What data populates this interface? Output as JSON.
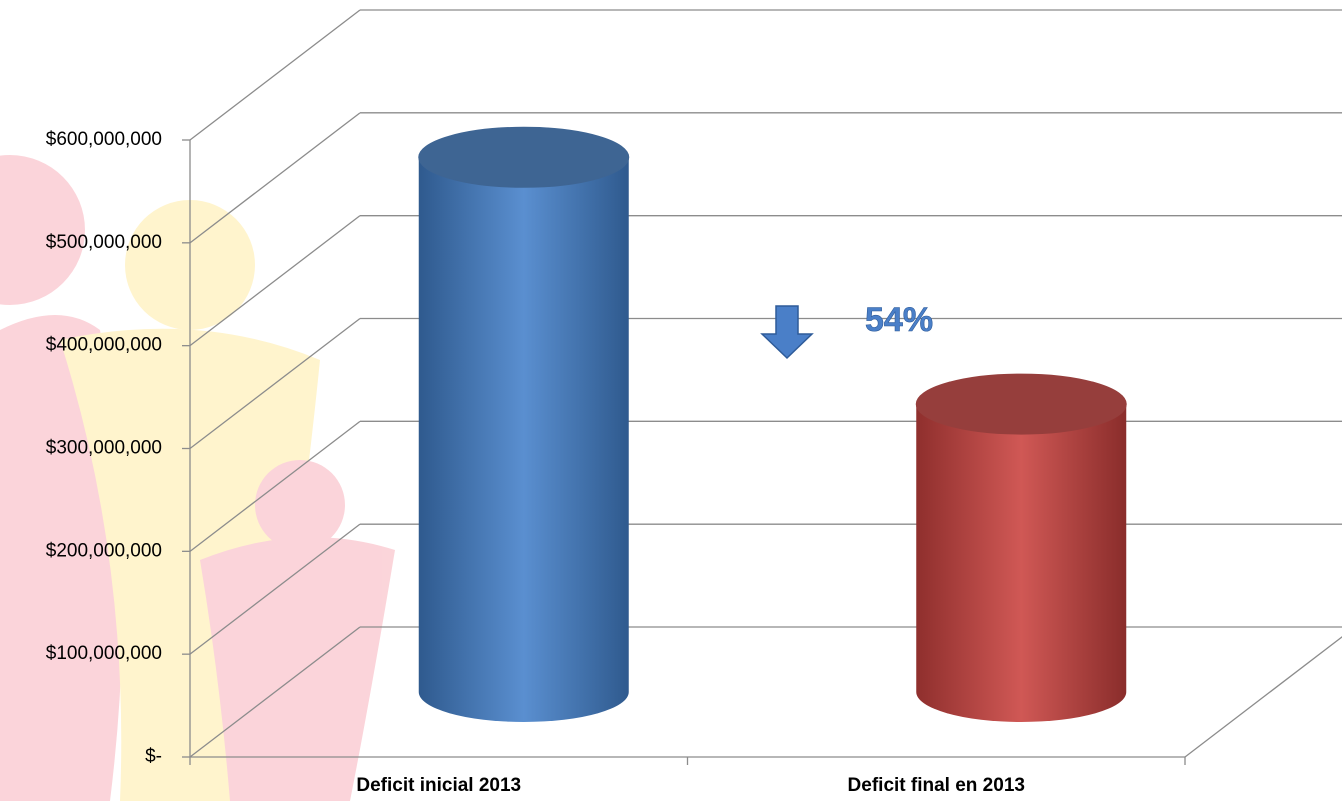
{
  "chart_data": {
    "type": "bar3d",
    "categories": [
      "Deficit inicial 2013",
      "Deficit final en 2013"
    ],
    "series": [
      {
        "values": [
          520000000,
          280000000
        ],
        "colors": [
          "#4f81bd",
          "#c0504d"
        ]
      }
    ],
    "ylim": [
      0,
      600000000
    ],
    "yticks": [
      {
        "value": 0,
        "label": "$-"
      },
      {
        "value": 100000000,
        "label": "$100,000,000"
      },
      {
        "value": 200000000,
        "label": "$200,000,000"
      },
      {
        "value": 300000000,
        "label": "$300,000,000"
      },
      {
        "value": 400000000,
        "label": "$400,000,000"
      },
      {
        "value": 500000000,
        "label": "$500,000,000"
      },
      {
        "value": 600000000,
        "label": "$600,000,000"
      }
    ],
    "grid": true,
    "annotation": "54%"
  }
}
